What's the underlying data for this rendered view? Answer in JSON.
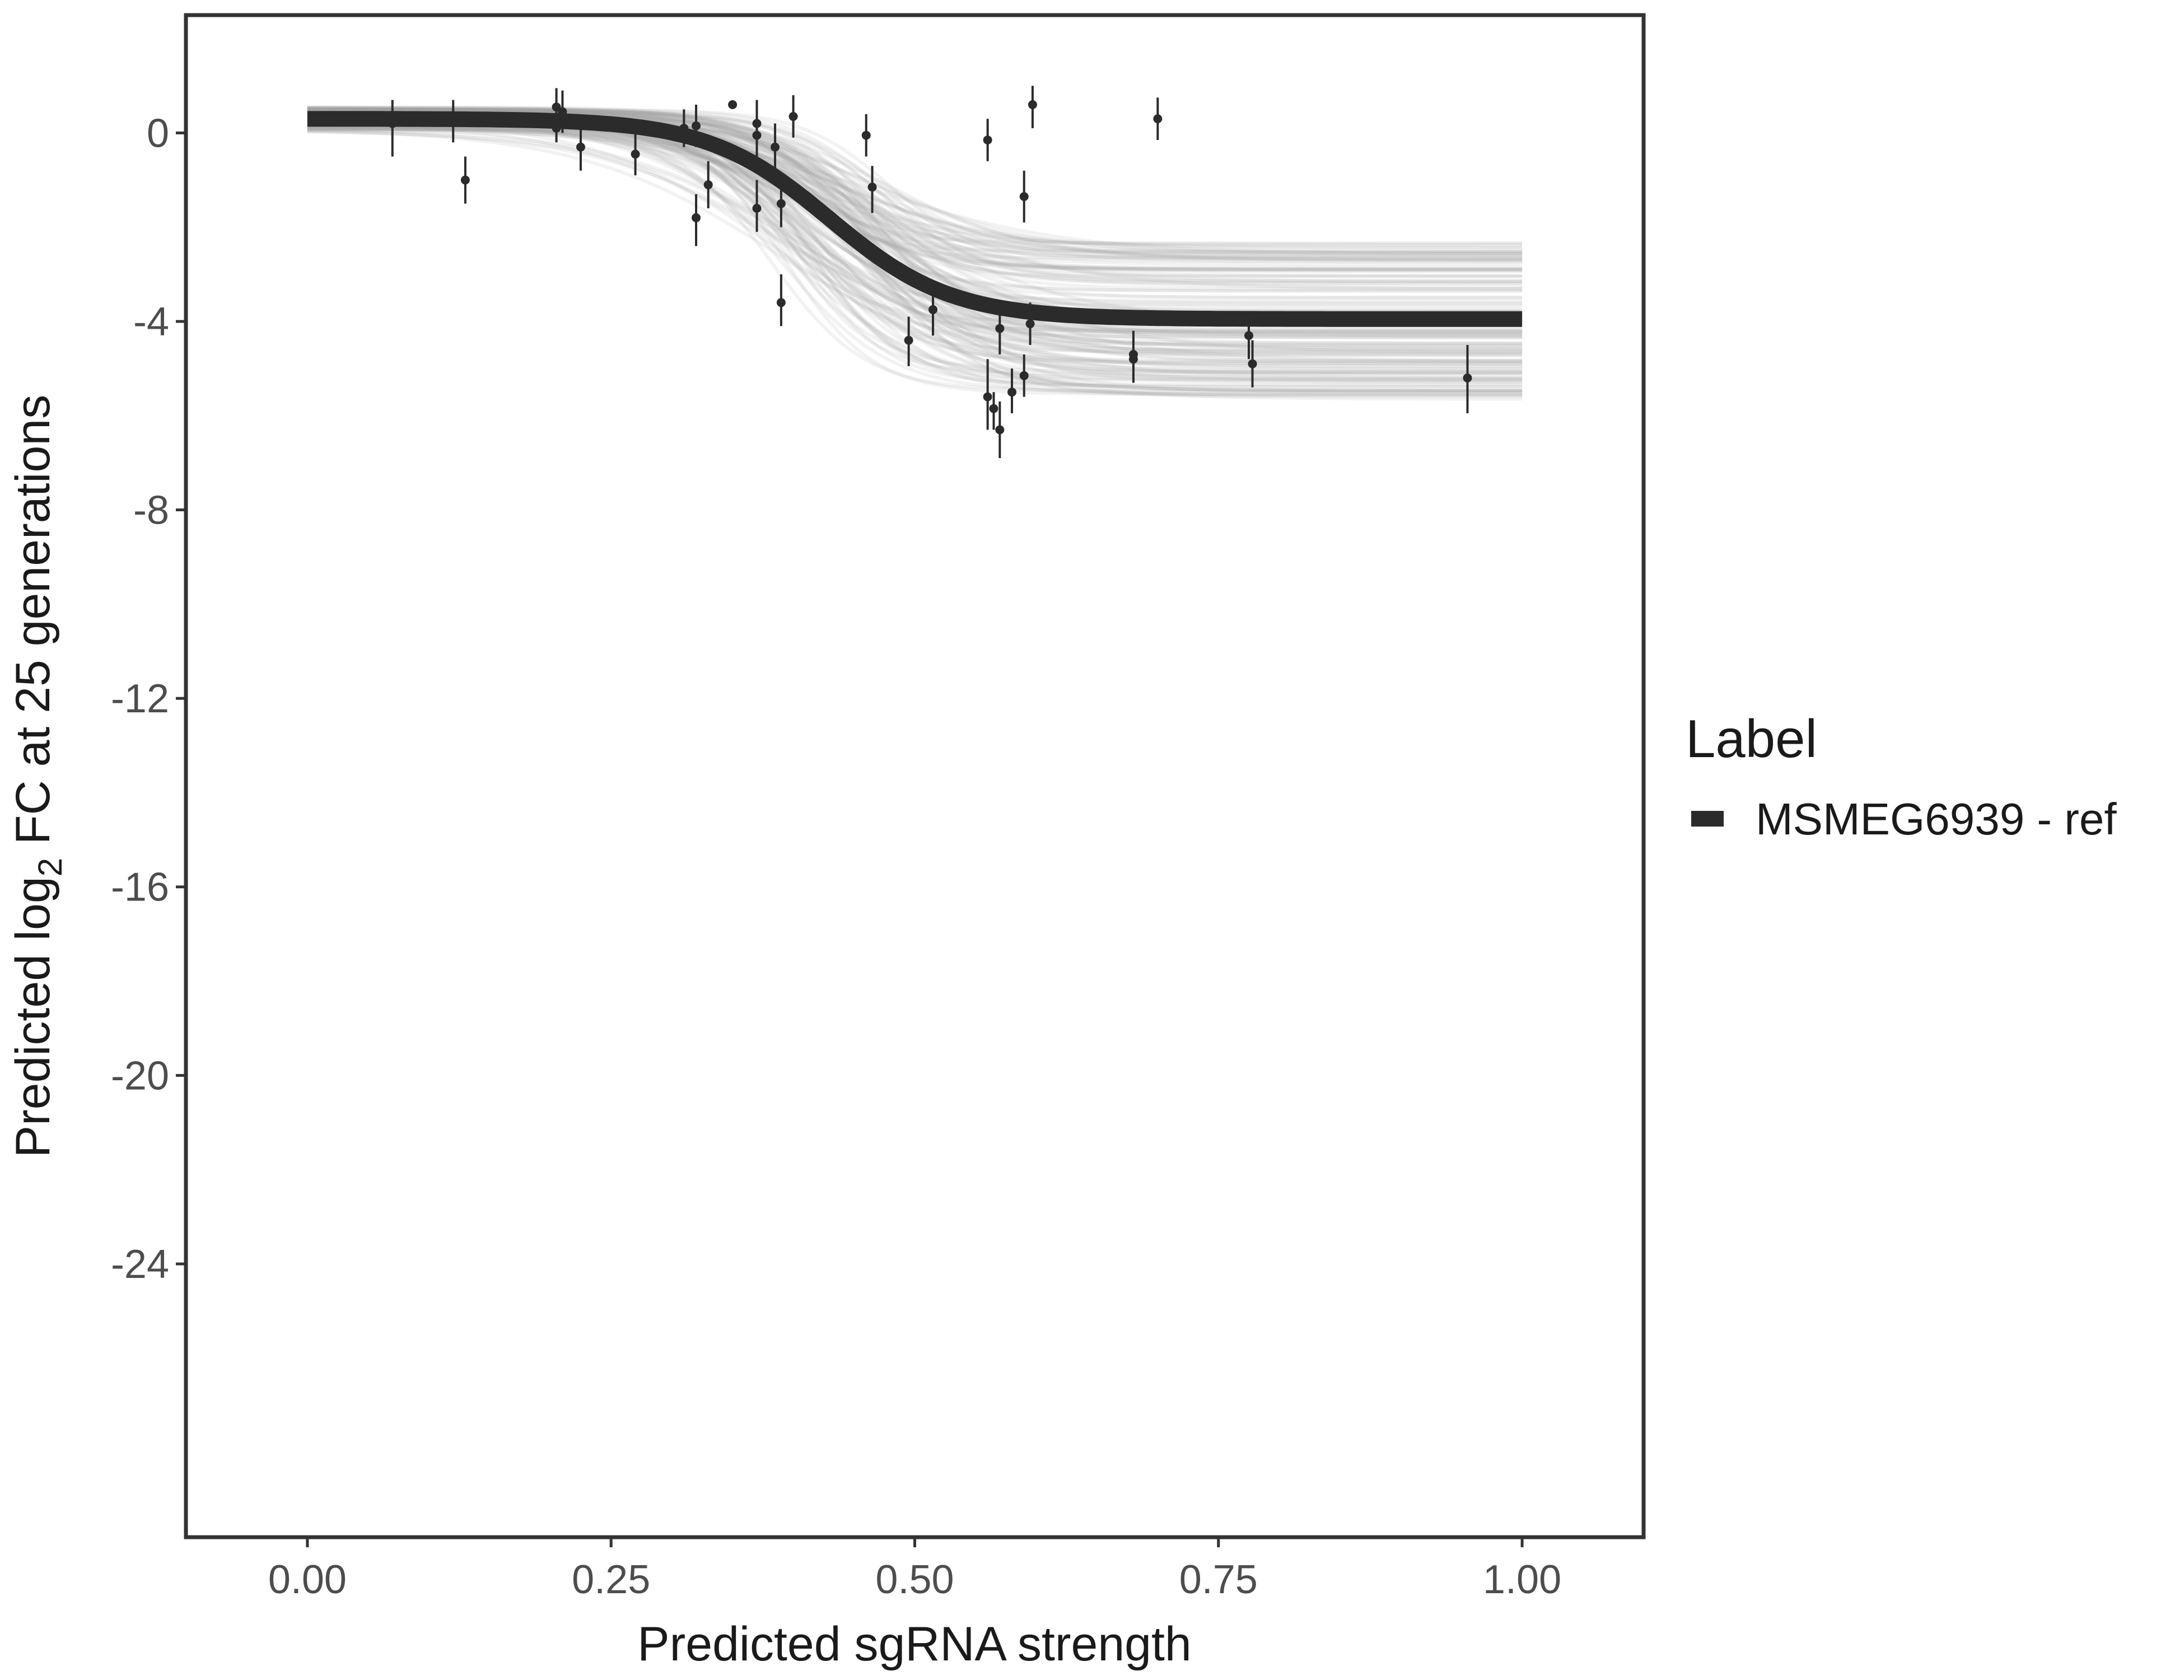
{
  "chart_data": {
    "type": "scatter",
    "xlabel": "Predicted sgRNA strength",
    "ylabel_prefix": "Predicted  log",
    "ylabel_subscript": "2",
    "ylabel_suffix": " FC at 25 generations",
    "xlim": [
      -0.1,
      1.1
    ],
    "ylim": [
      -29.8,
      2.5
    ],
    "x_ticks": [
      0,
      0.25,
      0.5,
      0.75,
      1
    ],
    "x_tick_labels": [
      "0.00",
      "0.25",
      "0.50",
      "0.75",
      "1.00"
    ],
    "y_ticks": [
      0,
      -4,
      -8,
      -12,
      -16,
      -20,
      -24
    ],
    "y_tick_labels": [
      "0",
      "-4",
      "-8",
      "-12",
      "-16",
      "-20",
      "-24"
    ],
    "grid": false,
    "legend": {
      "title": "Label",
      "entries": [
        "MSMEG6939 - ref"
      ],
      "position": "right"
    },
    "fit_curve": {
      "shape": "logistic",
      "upper": 0.3,
      "lower": -3.95,
      "midpoint": 0.43,
      "slope": 20
    },
    "colors": {
      "fit": "#2b2b2b",
      "band": "#a6a6a6",
      "points": "#2b2b2b"
    },
    "points": [
      {
        "x": 0.07,
        "y": 0.2,
        "lo": -0.5,
        "hi": 0.7
      },
      {
        "x": 0.12,
        "y": 0.25,
        "lo": -0.2,
        "hi": 0.7
      },
      {
        "x": 0.13,
        "y": -1.0,
        "lo": -1.5,
        "hi": -0.5
      },
      {
        "x": 0.205,
        "y": 0.55,
        "lo": 0.1,
        "hi": 0.95
      },
      {
        "x": 0.21,
        "y": 0.45,
        "lo": 0.0,
        "hi": 0.9
      },
      {
        "x": 0.205,
        "y": 0.1,
        "lo": -0.2,
        "hi": 0.5
      },
      {
        "x": 0.225,
        "y": -0.3,
        "lo": -0.8,
        "hi": 0.2
      },
      {
        "x": 0.27,
        "y": -0.45,
        "lo": -0.9,
        "hi": 0.0
      },
      {
        "x": 0.31,
        "y": 0.1,
        "lo": -0.3,
        "hi": 0.5
      },
      {
        "x": 0.32,
        "y": 0.15,
        "lo": -0.3,
        "hi": 0.6
      },
      {
        "x": 0.32,
        "y": -1.8,
        "lo": -2.4,
        "hi": -1.3
      },
      {
        "x": 0.33,
        "y": -1.1,
        "lo": -1.6,
        "hi": -0.6
      },
      {
        "x": 0.35,
        "y": 0.6,
        "lo": 0.55,
        "hi": 0.65
      },
      {
        "x": 0.37,
        "y": 0.2,
        "lo": -0.3,
        "hi": 0.7
      },
      {
        "x": 0.37,
        "y": -0.05,
        "lo": -0.5,
        "hi": 0.4
      },
      {
        "x": 0.37,
        "y": -1.6,
        "lo": -2.1,
        "hi": -1.0
      },
      {
        "x": 0.385,
        "y": -0.3,
        "lo": -0.8,
        "hi": 0.2
      },
      {
        "x": 0.39,
        "y": -1.5,
        "lo": -2.0,
        "hi": -1.0
      },
      {
        "x": 0.39,
        "y": -3.6,
        "lo": -4.1,
        "hi": -3.0
      },
      {
        "x": 0.4,
        "y": 0.35,
        "lo": -0.1,
        "hi": 0.8
      },
      {
        "x": 0.46,
        "y": -0.05,
        "lo": -0.5,
        "hi": 0.4
      },
      {
        "x": 0.465,
        "y": -1.15,
        "lo": -1.7,
        "hi": -0.7
      },
      {
        "x": 0.495,
        "y": -4.4,
        "lo": -4.95,
        "hi": -3.9
      },
      {
        "x": 0.515,
        "y": -3.75,
        "lo": -4.3,
        "hi": -3.2
      },
      {
        "x": 0.56,
        "y": -0.15,
        "lo": -0.6,
        "hi": 0.3
      },
      {
        "x": 0.56,
        "y": -5.6,
        "lo": -6.3,
        "hi": -4.8
      },
      {
        "x": 0.565,
        "y": -5.85,
        "lo": -6.3,
        "hi": -5.5
      },
      {
        "x": 0.57,
        "y": -4.15,
        "lo": -4.7,
        "hi": -3.7
      },
      {
        "x": 0.57,
        "y": -6.3,
        "lo": -6.9,
        "hi": -5.7
      },
      {
        "x": 0.58,
        "y": -5.5,
        "lo": -5.95,
        "hi": -5.0
      },
      {
        "x": 0.59,
        "y": -1.35,
        "lo": -1.9,
        "hi": -0.8
      },
      {
        "x": 0.59,
        "y": -5.15,
        "lo": -5.6,
        "hi": -4.7
      },
      {
        "x": 0.595,
        "y": -4.05,
        "lo": -4.5,
        "hi": -3.6
      },
      {
        "x": 0.597,
        "y": 0.6,
        "lo": 0.1,
        "hi": 1.0
      },
      {
        "x": 0.68,
        "y": -4.7,
        "lo": -5.3,
        "hi": -4.2
      },
      {
        "x": 0.68,
        "y": -4.8,
        "lo": -5.3,
        "hi": -4.4
      },
      {
        "x": 0.7,
        "y": 0.3,
        "lo": -0.15,
        "hi": 0.75
      },
      {
        "x": 0.775,
        "y": -4.3,
        "lo": -4.8,
        "hi": -3.8
      },
      {
        "x": 0.778,
        "y": -4.9,
        "lo": -5.4,
        "hi": -4.4
      },
      {
        "x": 0.955,
        "y": -5.2,
        "lo": -5.95,
        "hi": -4.5
      }
    ]
  }
}
